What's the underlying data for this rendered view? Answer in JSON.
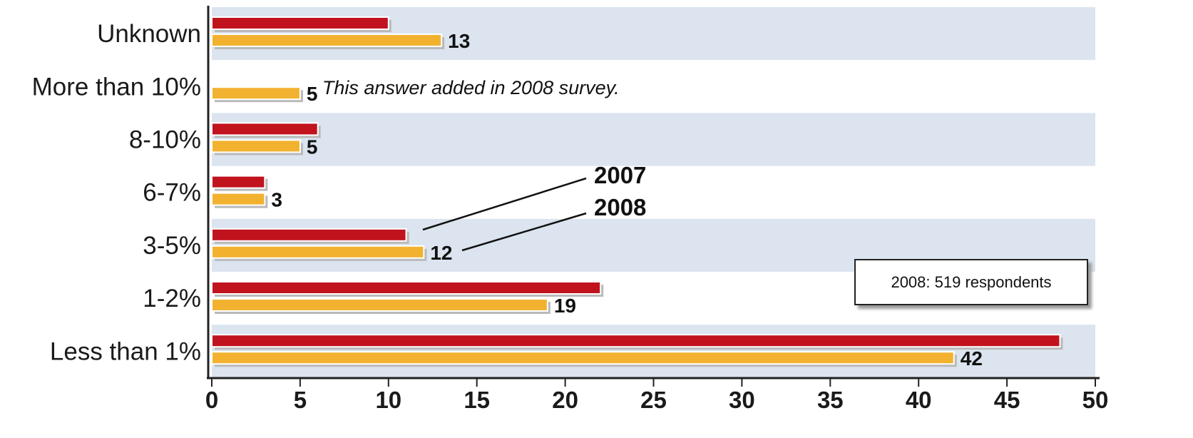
{
  "chart_data": {
    "type": "bar",
    "orientation": "horizontal",
    "categories": [
      "Unknown",
      "More than 10%",
      "8-10%",
      "6-7%",
      "3-5%",
      "1-2%",
      "Less than 1%"
    ],
    "series": [
      {
        "name": "2007",
        "values": [
          10,
          null,
          6,
          3,
          11,
          22,
          48
        ],
        "color": "#c0131e"
      },
      {
        "name": "2008",
        "values": [
          13,
          5,
          5,
          3,
          12,
          19,
          42
        ],
        "color": "#f2b230"
      }
    ],
    "data_labels": [
      "13",
      "5",
      "5",
      "3",
      "12",
      "19",
      "42"
    ],
    "xlim": [
      0,
      50
    ],
    "xticks": [
      "0",
      "5",
      "10",
      "15",
      "20",
      "25",
      "30",
      "35",
      "40",
      "45",
      "50"
    ],
    "annotation": "This answer added in 2008 survey.",
    "respondents_note": "2008: 519 respondents",
    "band_color": "#dbe4ef"
  }
}
